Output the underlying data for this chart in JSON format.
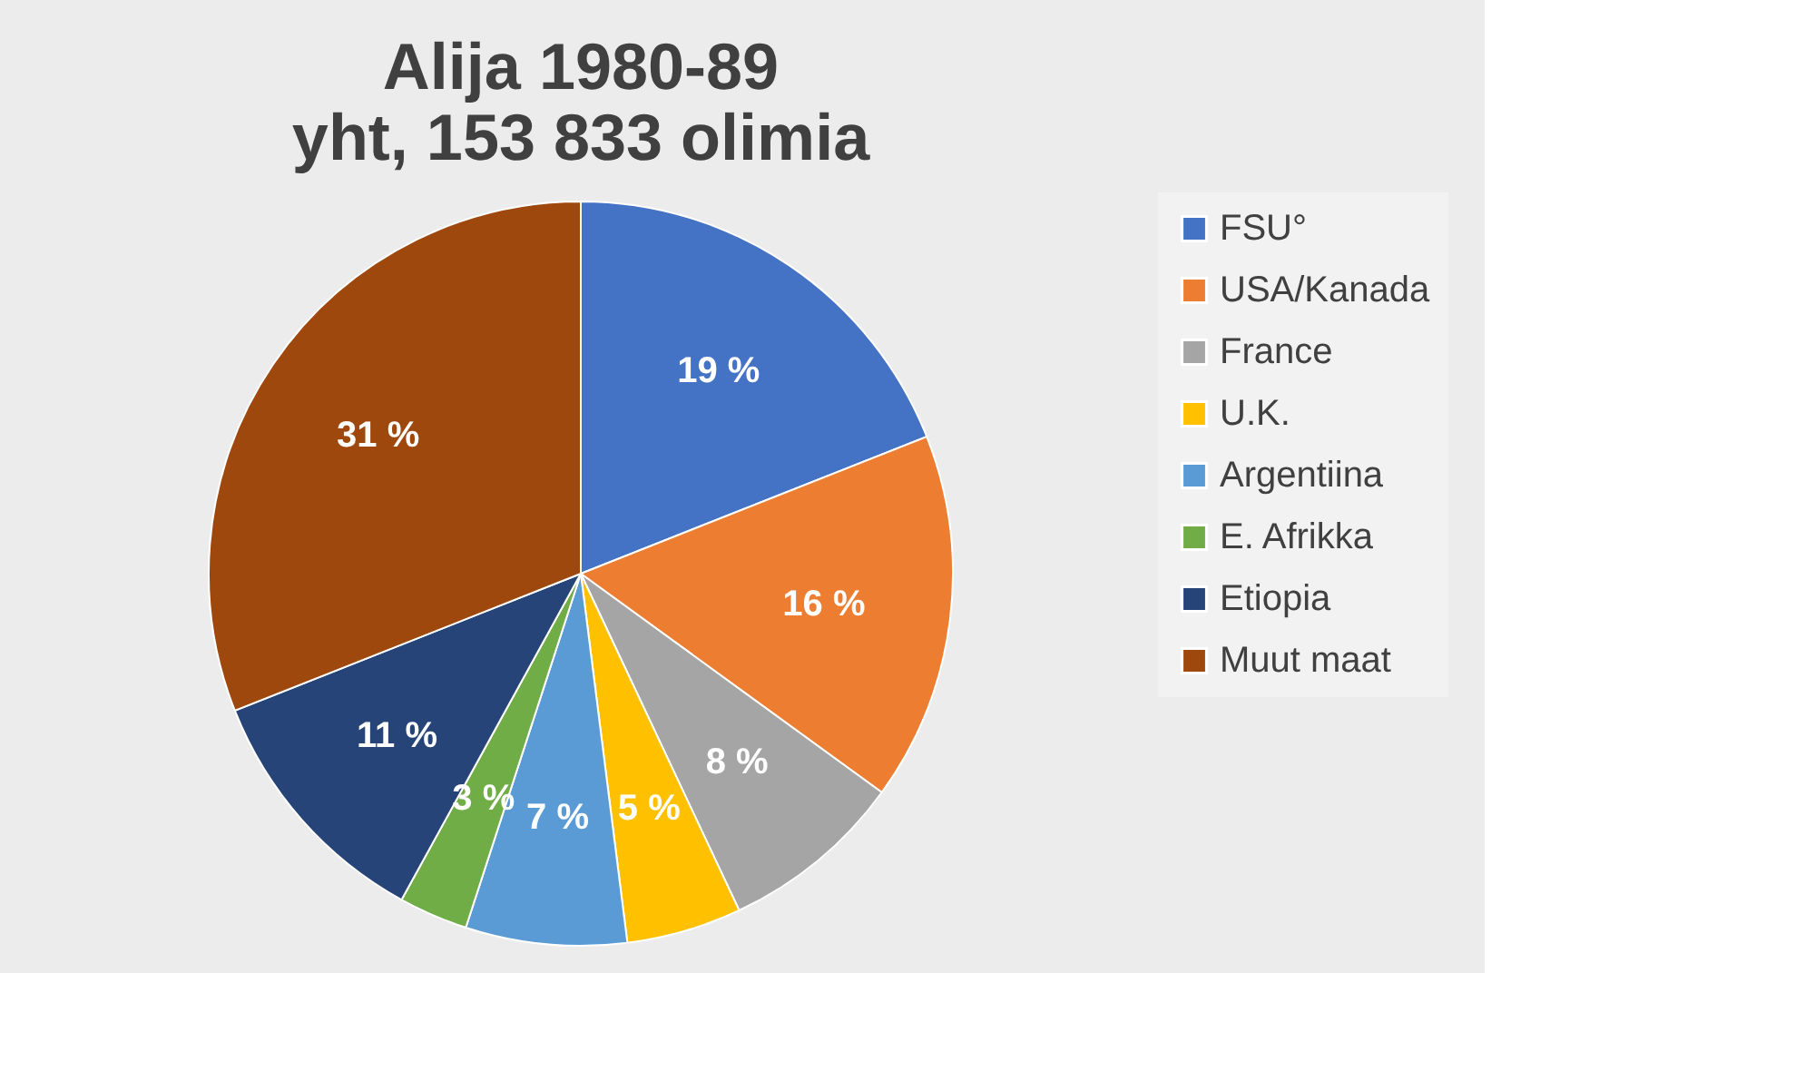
{
  "chart_data": {
    "type": "pie",
    "title": "Alija 1980-89",
    "subtitle": "yht, 153 833 olimia",
    "categories": [
      "FSU°",
      "USA/Kanada",
      "France",
      "U.K.",
      "Argentiina",
      "E. Afrikka",
      "Etiopia",
      "Muut maat"
    ],
    "values": [
      19,
      16,
      8,
      5,
      7,
      3,
      11,
      31
    ],
    "colors": [
      "#4472c4",
      "#ed7d31",
      "#a5a5a5",
      "#ffc000",
      "#5b9bd5",
      "#70ad47",
      "#264478",
      "#9e480e"
    ],
    "value_labels": [
      "19 %",
      "16 %",
      "8 %",
      "5 %",
      "7 %",
      "3 %",
      "11 %",
      "31 %"
    ],
    "legend": "right"
  }
}
